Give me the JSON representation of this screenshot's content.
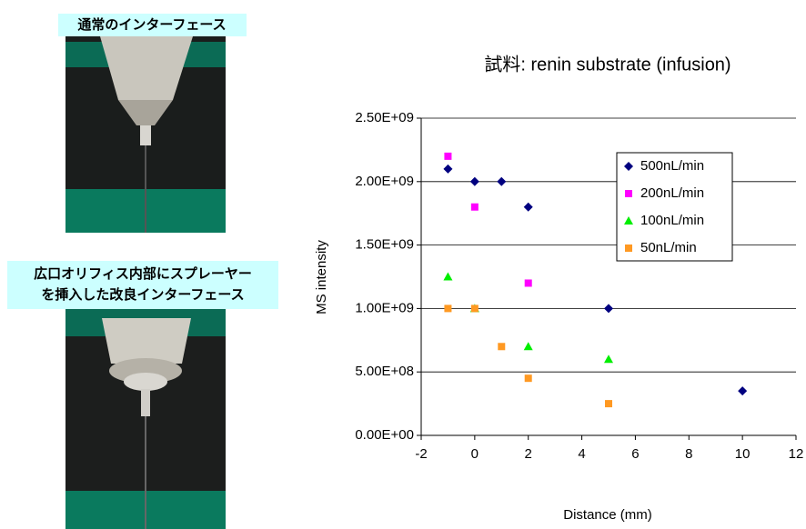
{
  "labels": {
    "top": "通常のインターフェース",
    "bottom": [
      "広口オリフィス内部にスプレーヤー",
      "を挿入した改良インターフェース"
    ]
  },
  "chart_data": {
    "type": "scatter",
    "title": "試料: renin substrate (infusion)",
    "x_label": "Distance (mm)",
    "y_label": "MS intensity",
    "xlim": [
      -2,
      12
    ],
    "xticks": [
      -2,
      0,
      2,
      4,
      6,
      8,
      10,
      12
    ],
    "ylim": [
      0,
      2500000000
    ],
    "yticks": [
      {
        "value": 0,
        "label": "0.00E+00"
      },
      {
        "value": 500000000,
        "label": "5.00E+08"
      },
      {
        "value": 1000000000,
        "label": "1.00E+09"
      },
      {
        "value": 1500000000,
        "label": "1.50E+09"
      },
      {
        "value": 2000000000,
        "label": "2.00E+09"
      },
      {
        "value": 2500000000,
        "label": "2.50E+09"
      }
    ],
    "grid": true,
    "legend": "upper right",
    "series": [
      {
        "name": "500nL/min",
        "color": "#000080",
        "marker": "diamond",
        "x": [
          -1,
          0,
          1,
          2,
          5,
          10
        ],
        "values": [
          2100000000,
          2000000000,
          2000000000,
          1800000000,
          1000000000,
          350000000
        ]
      },
      {
        "name": "200nL/min",
        "color": "#ff00ff",
        "marker": "square",
        "x": [
          -1,
          0,
          2
        ],
        "values": [
          2200000000,
          1800000000,
          1200000000
        ]
      },
      {
        "name": "100nL/min",
        "color": "#00ee00",
        "marker": "triangle",
        "x": [
          -1,
          0,
          2,
          5
        ],
        "values": [
          1250000000,
          1000000000,
          700000000,
          600000000
        ]
      },
      {
        "name": "50nL/min",
        "color": "#ff9922",
        "marker": "square",
        "x": [
          -1,
          0,
          1,
          2,
          5
        ],
        "values": [
          1000000000,
          1000000000,
          700000000,
          450000000,
          250000000
        ]
      }
    ]
  }
}
